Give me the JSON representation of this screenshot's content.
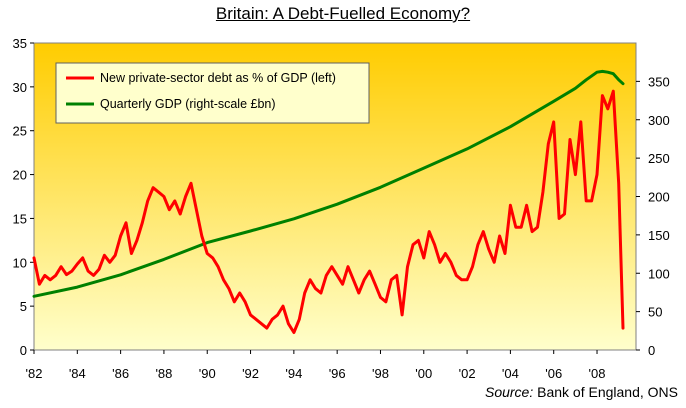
{
  "chart_data": {
    "type": "line",
    "title": "Britain: A Debt-Fuelled Economy?",
    "source_label": "Source:",
    "source_text": "Bank of England, ONS",
    "x_ticks": [
      "'82",
      "'84",
      "'86",
      "'88",
      "'90",
      "'92",
      "'94",
      "'96",
      "'98",
      "'00",
      "'02",
      "'04",
      "'06",
      "'08"
    ],
    "xlim": [
      1982,
      2009.8
    ],
    "y_left": {
      "lim": [
        0,
        35
      ],
      "ticks": [
        "0",
        "5",
        "10",
        "15",
        "20",
        "25",
        "30",
        "35"
      ]
    },
    "y_right": {
      "lim": [
        0,
        400
      ],
      "ticks": [
        "0",
        "50",
        "100",
        "150",
        "200",
        "250",
        "300",
        "350"
      ]
    },
    "legend_position": "top-left",
    "colors": {
      "bg_top": "#ffcc00",
      "bg_bottom": "#ffffcc",
      "debt": "#ff0000",
      "gdp": "#008000"
    },
    "series": [
      {
        "name": "New private-sector debt as % of GDP (left)",
        "axis": "left",
        "x": [
          1982.0,
          1982.25,
          1982.5,
          1982.75,
          1983.0,
          1983.25,
          1983.5,
          1983.75,
          1984.0,
          1984.25,
          1984.5,
          1984.75,
          1985.0,
          1985.25,
          1985.5,
          1985.75,
          1986.0,
          1986.25,
          1986.5,
          1986.75,
          1987.0,
          1987.25,
          1987.5,
          1987.75,
          1988.0,
          1988.25,
          1988.5,
          1988.75,
          1989.0,
          1989.25,
          1989.5,
          1989.75,
          1990.0,
          1990.25,
          1990.5,
          1990.75,
          1991.0,
          1991.25,
          1991.5,
          1991.75,
          1992.0,
          1992.25,
          1992.5,
          1992.75,
          1993.0,
          1993.25,
          1993.5,
          1993.75,
          1994.0,
          1994.25,
          1994.5,
          1994.75,
          1995.0,
          1995.25,
          1995.5,
          1995.75,
          1996.0,
          1996.25,
          1996.5,
          1996.75,
          1997.0,
          1997.25,
          1997.5,
          1997.75,
          1998.0,
          1998.25,
          1998.5,
          1998.75,
          1999.0,
          1999.25,
          1999.5,
          1999.75,
          2000.0,
          2000.25,
          2000.5,
          2000.75,
          2001.0,
          2001.25,
          2001.5,
          2001.75,
          2002.0,
          2002.25,
          2002.5,
          2002.75,
          2003.0,
          2003.25,
          2003.5,
          2003.75,
          2004.0,
          2004.25,
          2004.5,
          2004.75,
          2005.0,
          2005.25,
          2005.5,
          2005.75,
          2006.0,
          2006.25,
          2006.5,
          2006.75,
          2007.0,
          2007.25,
          2007.5,
          2007.75,
          2008.0,
          2008.25,
          2008.5,
          2008.75,
          2009.0,
          2009.2
        ],
        "values": [
          10.5,
          7.5,
          8.5,
          8.0,
          8.5,
          9.5,
          8.6,
          9.0,
          9.8,
          10.5,
          9.0,
          8.5,
          9.2,
          10.8,
          10.0,
          10.8,
          13.0,
          14.5,
          11.0,
          12.5,
          14.5,
          17.0,
          18.5,
          18.0,
          17.5,
          16.0,
          17.0,
          15.5,
          17.5,
          19.0,
          16.0,
          13.0,
          11.0,
          10.5,
          9.5,
          8.0,
          7.0,
          5.5,
          6.5,
          5.5,
          4.0,
          3.5,
          3.0,
          2.5,
          3.5,
          4.0,
          5.0,
          3.0,
          2.0,
          3.5,
          6.5,
          8.0,
          7.0,
          6.5,
          8.5,
          9.5,
          8.5,
          7.5,
          9.5,
          8.0,
          6.5,
          8.0,
          9.0,
          7.5,
          6.0,
          5.5,
          8.0,
          8.5,
          4.0,
          9.5,
          12.0,
          12.5,
          10.5,
          13.5,
          12.0,
          10.0,
          11.0,
          10.0,
          8.5,
          8.0,
          8.0,
          9.5,
          12.0,
          13.5,
          11.5,
          10.0,
          13.0,
          11.0,
          16.5,
          14.0,
          14.0,
          16.5,
          13.5,
          14.0,
          18.0,
          23.5,
          26.0,
          15.0,
          15.5,
          24.0,
          20.0,
          26.0,
          17.0,
          17.0,
          20.0,
          29.0,
          27.5,
          29.5,
          19.0,
          2.5
        ]
      },
      {
        "name": "Quarterly GDP (right-scale £bn)",
        "axis": "right",
        "x": [
          1982.0,
          1984.0,
          1986.0,
          1988.0,
          1990.0,
          1992.0,
          1994.0,
          1996.0,
          1998.0,
          2000.0,
          2002.0,
          2004.0,
          2006.0,
          2007.0,
          2007.5,
          2008.0,
          2008.25,
          2008.5,
          2008.75,
          2009.0,
          2009.2
        ],
        "values": [
          70,
          82,
          98,
          118,
          140,
          155,
          171,
          190,
          212,
          237,
          262,
          291,
          324,
          341,
          352,
          362,
          363,
          362,
          360,
          352,
          347
        ]
      }
    ]
  }
}
